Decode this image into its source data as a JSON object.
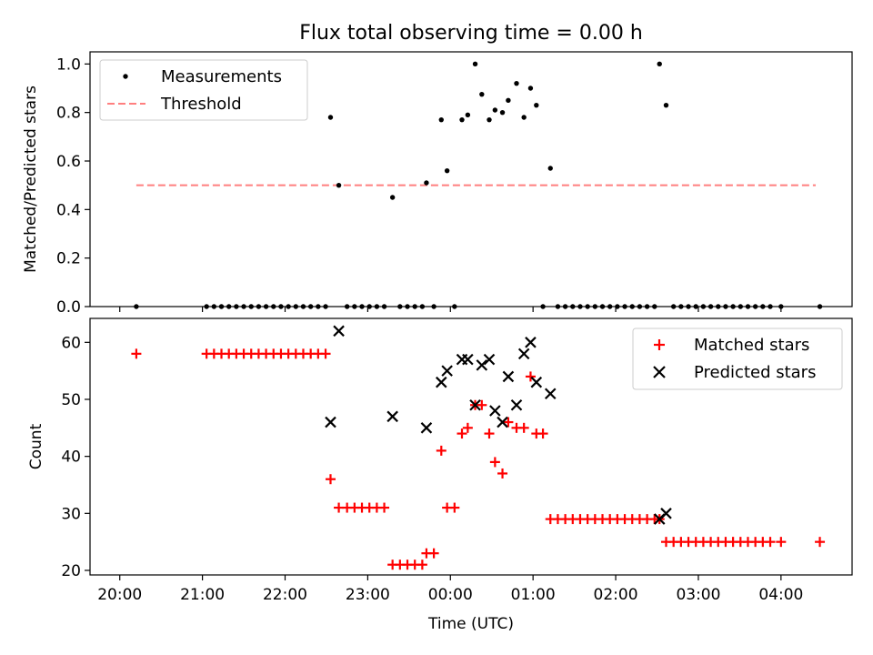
{
  "figure": {
    "title": "Flux total observing time = 0.00 h",
    "xlabel": "Time (UTC)",
    "x_ticks": [
      {
        "label": "20:00",
        "hour": 20.0
      },
      {
        "label": "21:00",
        "hour": 21.0
      },
      {
        "label": "22:00",
        "hour": 22.0
      },
      {
        "label": "23:00",
        "hour": 23.0
      },
      {
        "label": "00:00",
        "hour": 24.0
      },
      {
        "label": "01:00",
        "hour": 25.0
      },
      {
        "label": "02:00",
        "hour": 26.0
      },
      {
        "label": "03:00",
        "hour": 27.0
      },
      {
        "label": "04:00",
        "hour": 28.0
      }
    ],
    "xlim_hours": [
      19.64,
      28.86
    ]
  },
  "chart_data": [
    {
      "type": "scatter",
      "panel": "top",
      "ylabel": "Matched/Predicted stars",
      "ylim": [
        0,
        1.05
      ],
      "yticks": [
        "0.0",
        "0.2",
        "0.4",
        "0.6",
        "0.8",
        "1.0"
      ],
      "legend_position": "upper-left",
      "series": [
        {
          "name": "Measurements",
          "marker": "dot",
          "color": "#000000",
          "x_hours": [
            20.2,
            21.05,
            21.14,
            21.23,
            21.32,
            21.41,
            21.5,
            21.59,
            21.68,
            21.77,
            21.86,
            21.95,
            22.04,
            22.13,
            22.22,
            22.31,
            22.4,
            22.49,
            22.55,
            22.65,
            22.75,
            22.84,
            22.93,
            23.02,
            23.11,
            23.2,
            23.3,
            23.39,
            23.48,
            23.57,
            23.66,
            23.71,
            23.8,
            23.89,
            23.96,
            24.05,
            24.14,
            24.21,
            24.3,
            24.38,
            24.47,
            24.54,
            24.63,
            24.7,
            24.8,
            24.89,
            24.97,
            25.04,
            25.12,
            25.21,
            25.3,
            25.39,
            25.48,
            25.57,
            25.66,
            25.75,
            25.84,
            25.93,
            26.02,
            26.11,
            26.2,
            26.29,
            26.38,
            26.47,
            26.53,
            26.61,
            26.7,
            26.79,
            26.88,
            26.97,
            27.06,
            27.15,
            27.24,
            27.33,
            27.42,
            27.51,
            27.6,
            27.69,
            27.78,
            27.87,
            28.0,
            28.47
          ],
          "y": [
            0.0,
            0.0,
            0.0,
            0.0,
            0.0,
            0.0,
            0.0,
            0.0,
            0.0,
            0.0,
            0.0,
            0.0,
            0.0,
            0.0,
            0.0,
            0.0,
            0.0,
            0.0,
            0.78,
            0.5,
            0.0,
            0.0,
            0.0,
            0.0,
            0.0,
            0.0,
            0.45,
            0.0,
            0.0,
            0.0,
            0.0,
            0.51,
            0.0,
            0.77,
            0.56,
            0.0,
            0.77,
            0.79,
            1.0,
            0.875,
            0.77,
            0.81,
            0.8,
            0.85,
            0.92,
            0.78,
            0.9,
            0.83,
            0.0,
            0.57,
            0.0,
            0.0,
            0.0,
            0.0,
            0.0,
            0.0,
            0.0,
            0.0,
            0.0,
            0.0,
            0.0,
            0.0,
            0.0,
            0.0,
            1.0,
            0.83,
            0.0,
            0.0,
            0.0,
            0.0,
            0.0,
            0.0,
            0.0,
            0.0,
            0.0,
            0.0,
            0.0,
            0.0,
            0.0,
            0.0,
            0.0,
            0.0
          ]
        },
        {
          "name": "Threshold",
          "marker": "dashed-line",
          "color": "#ff7f7f",
          "x_hours": [
            20.2,
            28.42
          ],
          "y": [
            0.5,
            0.5
          ]
        }
      ]
    },
    {
      "type": "scatter",
      "panel": "bottom",
      "ylabel": "Count",
      "ylim": [
        19.2,
        64.2
      ],
      "yticks": [
        "20",
        "30",
        "40",
        "50",
        "60"
      ],
      "legend_position": "upper-right",
      "series": [
        {
          "name": "Matched stars",
          "marker": "plus",
          "color": "#ff0000",
          "x_hours": [
            20.2,
            21.05,
            21.14,
            21.23,
            21.32,
            21.41,
            21.5,
            21.59,
            21.68,
            21.77,
            21.86,
            21.95,
            22.04,
            22.13,
            22.22,
            22.31,
            22.4,
            22.49,
            22.55,
            22.65,
            22.75,
            22.84,
            22.93,
            23.02,
            23.11,
            23.2,
            23.3,
            23.39,
            23.48,
            23.57,
            23.66,
            23.71,
            23.8,
            23.89,
            23.96,
            24.05,
            24.14,
            24.21,
            24.3,
            24.38,
            24.47,
            24.54,
            24.63,
            24.7,
            24.8,
            24.89,
            24.97,
            25.04,
            25.12,
            25.21,
            25.3,
            25.39,
            25.48,
            25.57,
            25.66,
            25.75,
            25.84,
            25.93,
            26.02,
            26.11,
            26.2,
            26.29,
            26.38,
            26.47,
            26.53,
            26.61,
            26.7,
            26.79,
            26.88,
            26.97,
            27.06,
            27.15,
            27.24,
            27.33,
            27.42,
            27.51,
            27.6,
            27.69,
            27.78,
            27.87,
            28.0,
            28.47
          ],
          "y": [
            58,
            58,
            58,
            58,
            58,
            58,
            58,
            58,
            58,
            58,
            58,
            58,
            58,
            58,
            58,
            58,
            58,
            58,
            36,
            31,
            31,
            31,
            31,
            31,
            31,
            31,
            21,
            21,
            21,
            21,
            21,
            23,
            23,
            41,
            31,
            31,
            44,
            45,
            49,
            49,
            44,
            39,
            37,
            46,
            45,
            45,
            54,
            44,
            44,
            29,
            29,
            29,
            29,
            29,
            29,
            29,
            29,
            29,
            29,
            29,
            29,
            29,
            29,
            29,
            29,
            25,
            25,
            25,
            25,
            25,
            25,
            25,
            25,
            25,
            25,
            25,
            25,
            25,
            25,
            25,
            25,
            25
          ]
        },
        {
          "name": "Predicted stars",
          "marker": "x",
          "color": "#000000",
          "x_hours": [
            22.55,
            22.65,
            23.3,
            23.71,
            23.89,
            23.96,
            24.14,
            24.21,
            24.3,
            24.38,
            24.47,
            24.54,
            24.63,
            24.7,
            24.8,
            24.89,
            24.97,
            25.04,
            25.21,
            26.53,
            26.61
          ],
          "y": [
            46,
            62,
            47,
            45,
            53,
            55,
            57,
            57,
            49,
            56,
            57,
            48,
            46,
            54,
            49,
            58,
            60,
            53,
            51,
            29,
            30
          ]
        }
      ]
    }
  ]
}
